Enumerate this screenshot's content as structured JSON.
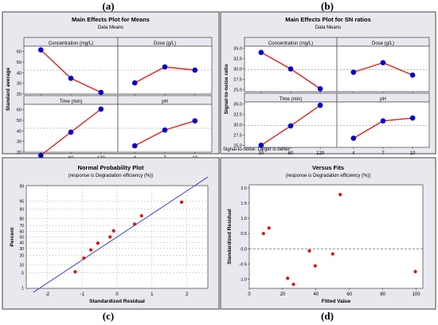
{
  "captions": {
    "a": "(a)",
    "b": "(b)",
    "c": "(c)",
    "d": "(d)"
  },
  "colors": {
    "panel_bg": "#e8e8ee",
    "plot_bg": "#ffffff",
    "point": "#0000cc",
    "line": "#e02020",
    "red_point": "#e01010",
    "fit_line": "#3333bb",
    "grid": "#b0b0b0"
  },
  "chart_data": [
    {
      "type": "line",
      "title": "Main Effects Plot for Means",
      "subtitle": "Data Means",
      "ylabel": "Standard average",
      "ylim": [
        20,
        65
      ],
      "yticks": [
        20,
        30,
        40,
        50,
        60
      ],
      "reference_line": 42.5,
      "factors": [
        {
          "name": "Concentration (mg/L)",
          "levels": [
            "10",
            "30",
            "50"
          ],
          "values": [
            61.5,
            34.8,
            21.5
          ]
        },
        {
          "name": "Dose (g/L)",
          "levels": [
            "0.33",
            "0.67",
            "1.0"
          ],
          "values": [
            30.5,
            45.5,
            42.5
          ]
        },
        {
          "name": "Time (min)",
          "levels": [
            "30",
            "60",
            "120"
          ],
          "values": [
            17.0,
            38.8,
            60.5
          ]
        },
        {
          "name": "pH",
          "levels": [
            "4",
            "7",
            "10"
          ],
          "values": [
            26.0,
            40.8,
            49.5
          ]
        }
      ]
    },
    {
      "type": "line",
      "title": "Main Effects Plot for SN ratios",
      "subtitle": "Data Means",
      "ylabel": "Signal-to-noise ratio",
      "ylim": [
        24.5,
        35.5
      ],
      "yticks": [
        "25.0",
        "27.5",
        "30.0",
        "32.5",
        "35.0"
      ],
      "reference_line": 29.8,
      "footnote": "Signal-to-noise: Larger is better",
      "factors": [
        {
          "name": "Concentration (mg/L)",
          "levels": [
            "10",
            "30",
            "50"
          ],
          "values": [
            34.0,
            30.0,
            25.2
          ]
        },
        {
          "name": "Dose (g/L)",
          "levels": [
            "0.33",
            "0.67",
            "1.0"
          ],
          "values": [
            29.2,
            31.5,
            28.5
          ]
        },
        {
          "name": "Time (min)",
          "levels": [
            "30",
            "60",
            "120"
          ],
          "values": [
            25.0,
            29.7,
            34.7
          ]
        },
        {
          "name": "pH",
          "levels": [
            "4",
            "7",
            "10"
          ],
          "values": [
            26.7,
            30.9,
            31.6
          ]
        }
      ]
    },
    {
      "type": "scatter",
      "title": "Normal Probability Plot",
      "subtitle": "(response is Degradation efficiency (%))",
      "xlabel": "Standardized Residual",
      "ylabel": "Percent",
      "xlim": [
        -2.6,
        2.6
      ],
      "xticks": [
        "-2",
        "-1",
        "0",
        "1",
        "2"
      ],
      "yticks": [
        "1",
        "5",
        "10",
        "20",
        "30",
        "40",
        "50",
        "60",
        "70",
        "80",
        "90",
        "95",
        "99"
      ],
      "points": [
        {
          "x": -1.2,
          "y": 5.6
        },
        {
          "x": -0.95,
          "y": 16.7
        },
        {
          "x": -0.75,
          "y": 27.8
        },
        {
          "x": -0.55,
          "y": 38.9
        },
        {
          "x": -0.2,
          "y": 50.0
        },
        {
          "x": -0.1,
          "y": 61.1
        },
        {
          "x": 0.5,
          "y": 72.2
        },
        {
          "x": 0.7,
          "y": 83.3
        },
        {
          "x": 1.85,
          "y": 94.4
        }
      ],
      "fit_line": {
        "x0": -2.4,
        "x1": 2.6,
        "mean": 0.0,
        "sd": 0.95
      }
    },
    {
      "type": "scatter",
      "title": "Versus Fits",
      "subtitle": "(response is Degradation efficiency (%))",
      "xlabel": "Fitted Value",
      "ylabel": "Standardized Residual",
      "xlim": [
        0,
        104
      ],
      "ylim": [
        -1.3,
        2.1
      ],
      "xticks": [
        "0",
        "20",
        "40",
        "60",
        "80",
        "100"
      ],
      "yticks": [
        "-1.0",
        "-0.5",
        "0.0",
        "0.5",
        "1.0",
        "1.5",
        "2.0"
      ],
      "reference_line": 0,
      "points": [
        {
          "x": 8.5,
          "y": 0.5
        },
        {
          "x": 11.8,
          "y": 0.68
        },
        {
          "x": 23.0,
          "y": -0.97
        },
        {
          "x": 26.5,
          "y": -1.17
        },
        {
          "x": 36.0,
          "y": -0.07
        },
        {
          "x": 39.5,
          "y": -0.56
        },
        {
          "x": 50.0,
          "y": -0.17
        },
        {
          "x": 54.5,
          "y": 1.78
        },
        {
          "x": 99.5,
          "y": -0.75
        }
      ]
    }
  ]
}
